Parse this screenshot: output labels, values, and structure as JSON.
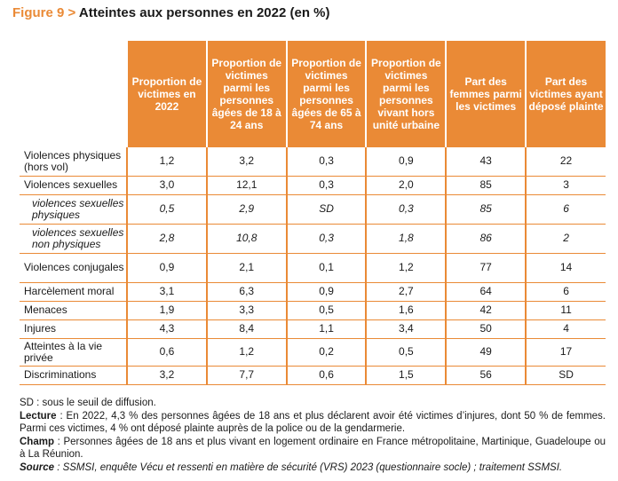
{
  "figure": {
    "number": "Figure 9",
    "separator": " > ",
    "title": "Atteintes aux personnes en 2022 (en %)"
  },
  "colors": {
    "accent": "#ea8a36",
    "text": "#1a1a1a"
  },
  "table": {
    "columns": [
      "Proportion de victimes en 2022",
      "Proportion de victimes parmi les personnes âgées de 18 à 24 ans",
      "Proportion de victimes parmi les personnes âgées de 65 à 74 ans",
      "Proportion de victimes parmi les personnes vivant hors unité urbaine",
      "Part des femmes parmi les victimes",
      "Part des victimes ayant déposé plainte"
    ],
    "rows": [
      {
        "label": "Violences physiques (hors vol)",
        "values": [
          "1,2",
          "3,2",
          "0,3",
          "0,9",
          "43",
          "22"
        ],
        "sub": false
      },
      {
        "label": "Violences sexuelles",
        "values": [
          "3,0",
          "12,1",
          "0,3",
          "2,0",
          "85",
          "3"
        ],
        "sub": false
      },
      {
        "label": "violences sexuelles physiques",
        "values": [
          "0,5",
          "2,9",
          "SD",
          "0,3",
          "85",
          "6"
        ],
        "sub": true
      },
      {
        "label": "violences sexuelles non physiques",
        "values": [
          "2,8",
          "10,8",
          "0,3",
          "1,8",
          "86",
          "2"
        ],
        "sub": true
      },
      {
        "label": "Violences conjugales",
        "values": [
          "0,9",
          "2,1",
          "0,1",
          "1,2",
          "77",
          "14"
        ],
        "sub": false
      },
      {
        "label": "Harcèlement moral",
        "values": [
          "3,1",
          "6,3",
          "0,9",
          "2,7",
          "64",
          "6"
        ],
        "sub": false
      },
      {
        "label": "Menaces",
        "values": [
          "1,9",
          "3,3",
          "0,5",
          "1,6",
          "42",
          "11"
        ],
        "sub": false
      },
      {
        "label": "Injures",
        "values": [
          "4,3",
          "8,4",
          "1,1",
          "3,4",
          "50",
          "4"
        ],
        "sub": false
      },
      {
        "label": "Atteintes à la vie privée",
        "values": [
          "0,6",
          "1,2",
          "0,2",
          "0,5",
          "49",
          "17"
        ],
        "sub": false
      },
      {
        "label": "Discriminations",
        "values": [
          "3,2",
          "7,7",
          "0,6",
          "1,5",
          "56",
          "SD"
        ],
        "sub": false
      }
    ]
  },
  "notes": {
    "sd": "SD : sous le seuil de diffusion.",
    "lecture_label": "Lecture",
    "lecture_text": " : En 2022, 4,3 % des personnes âgées de 18 ans et plus déclarent avoir été victimes d’injures, dont 50 % de femmes. Parmi ces victimes, 4 % ont déposé plainte auprès de la police ou de la gendarmerie.",
    "champ_label": "Champ",
    "champ_text": " : Personnes âgées de 18 ans et plus vivant en logement ordinaire en France métropolitaine, Martinique, Guadeloupe ou à La Réunion.",
    "source_label": "Source",
    "source_text": " : SSMSI, enquête Vécu et ressenti en matière de sécurité (VRS) 2023 (questionnaire socle) ; traitement SSMSI."
  }
}
